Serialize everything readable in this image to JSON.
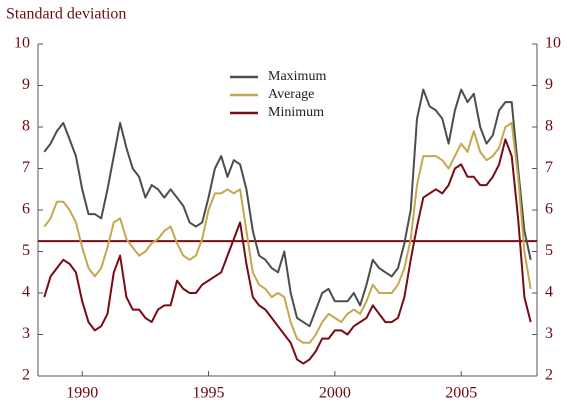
{
  "chart_data": {
    "type": "line",
    "y_label": "Standard deviation",
    "x": [
      1988.5,
      1988.75,
      1989,
      1989.25,
      1989.5,
      1989.75,
      1990,
      1990.25,
      1990.5,
      1990.75,
      1991,
      1991.25,
      1991.5,
      1991.75,
      1992,
      1992.25,
      1992.5,
      1992.75,
      1993,
      1993.25,
      1993.5,
      1993.75,
      1994,
      1994.25,
      1994.5,
      1994.75,
      1995,
      1995.25,
      1995.5,
      1995.75,
      1996,
      1996.25,
      1996.5,
      1996.75,
      1997,
      1997.25,
      1997.5,
      1997.75,
      1998,
      1998.25,
      1998.5,
      1998.75,
      1999,
      1999.25,
      1999.5,
      1999.75,
      2000,
      2000.25,
      2000.5,
      2000.75,
      2001,
      2001.25,
      2001.5,
      2001.75,
      2002,
      2002.25,
      2002.5,
      2002.75,
      2003,
      2003.25,
      2003.5,
      2003.75,
      2004,
      2004.25,
      2004.5,
      2004.75,
      2005,
      2005.25,
      2005.5,
      2005.75,
      2006,
      2006.25,
      2006.5,
      2006.75,
      2007,
      2007.25,
      2007.5,
      2007.75
    ],
    "series": [
      {
        "name": "Maximum",
        "color": "#4a4f49",
        "values": [
          7.4,
          7.6,
          7.9,
          8.1,
          7.7,
          7.3,
          6.5,
          5.9,
          5.9,
          5.8,
          6.5,
          7.3,
          8.1,
          7.5,
          7.0,
          6.8,
          6.3,
          6.6,
          6.5,
          6.3,
          6.5,
          6.3,
          6.1,
          5.7,
          5.6,
          5.7,
          6.3,
          7.0,
          7.3,
          6.8,
          7.2,
          7.1,
          6.5,
          5.5,
          4.9,
          4.8,
          4.6,
          4.5,
          5.0,
          4.0,
          3.4,
          3.3,
          3.2,
          3.6,
          4.0,
          4.1,
          3.8,
          3.8,
          3.8,
          4.0,
          3.7,
          4.2,
          4.8,
          4.6,
          4.5,
          4.4,
          4.6,
          5.2,
          6.0,
          8.2,
          8.9,
          8.5,
          8.4,
          8.2,
          7.6,
          8.4,
          8.9,
          8.6,
          8.8,
          8.0,
          7.6,
          7.8,
          8.4,
          8.6,
          8.6,
          7.0,
          5.5,
          4.8
        ]
      },
      {
        "name": "Average",
        "color": "#c4a84f",
        "values": [
          5.6,
          5.8,
          6.2,
          6.2,
          6.0,
          5.7,
          5.1,
          4.6,
          4.4,
          4.6,
          5.1,
          5.7,
          5.8,
          5.3,
          5.1,
          4.9,
          5.0,
          5.2,
          5.3,
          5.5,
          5.6,
          5.2,
          4.9,
          4.8,
          4.9,
          5.3,
          6.0,
          6.4,
          6.4,
          6.5,
          6.4,
          6.5,
          5.5,
          4.5,
          4.2,
          4.1,
          3.9,
          4.0,
          3.9,
          3.3,
          2.9,
          2.8,
          2.8,
          3.0,
          3.3,
          3.5,
          3.4,
          3.3,
          3.5,
          3.6,
          3.5,
          3.8,
          4.2,
          4.0,
          4.0,
          4.0,
          4.2,
          4.6,
          5.3,
          6.6,
          7.3,
          7.3,
          7.3,
          7.2,
          7.0,
          7.3,
          7.6,
          7.4,
          7.9,
          7.4,
          7.2,
          7.3,
          7.5,
          8.0,
          8.1,
          6.8,
          5.0,
          4.1
        ]
      },
      {
        "name": "Minimum",
        "color": "#7a0a14",
        "values": [
          3.9,
          4.4,
          4.6,
          4.8,
          4.7,
          4.5,
          3.8,
          3.3,
          3.1,
          3.2,
          3.5,
          4.5,
          4.9,
          3.9,
          3.6,
          3.6,
          3.4,
          3.3,
          3.6,
          3.7,
          3.7,
          4.3,
          4.1,
          4.0,
          4.0,
          4.2,
          4.3,
          4.4,
          4.5,
          4.9,
          5.3,
          5.7,
          4.7,
          3.9,
          3.7,
          3.6,
          3.4,
          3.2,
          3.0,
          2.8,
          2.4,
          2.3,
          2.4,
          2.6,
          2.9,
          2.9,
          3.1,
          3.1,
          3.0,
          3.2,
          3.3,
          3.4,
          3.7,
          3.5,
          3.3,
          3.3,
          3.4,
          3.9,
          4.8,
          5.6,
          6.3,
          6.4,
          6.5,
          6.4,
          6.6,
          7.0,
          7.1,
          6.8,
          6.8,
          6.6,
          6.6,
          6.8,
          7.1,
          7.7,
          7.3,
          5.8,
          3.9,
          3.3
        ]
      }
    ],
    "reference_line": 5.25,
    "reference_color": "#7a0a14",
    "xlim": [
      1988.25,
      2008
    ],
    "xticks": [
      1990,
      1995,
      2000,
      2005
    ],
    "ylim": [
      2,
      10
    ],
    "yticks": [
      2,
      3,
      4,
      5,
      6,
      7,
      8,
      9,
      10
    ]
  }
}
